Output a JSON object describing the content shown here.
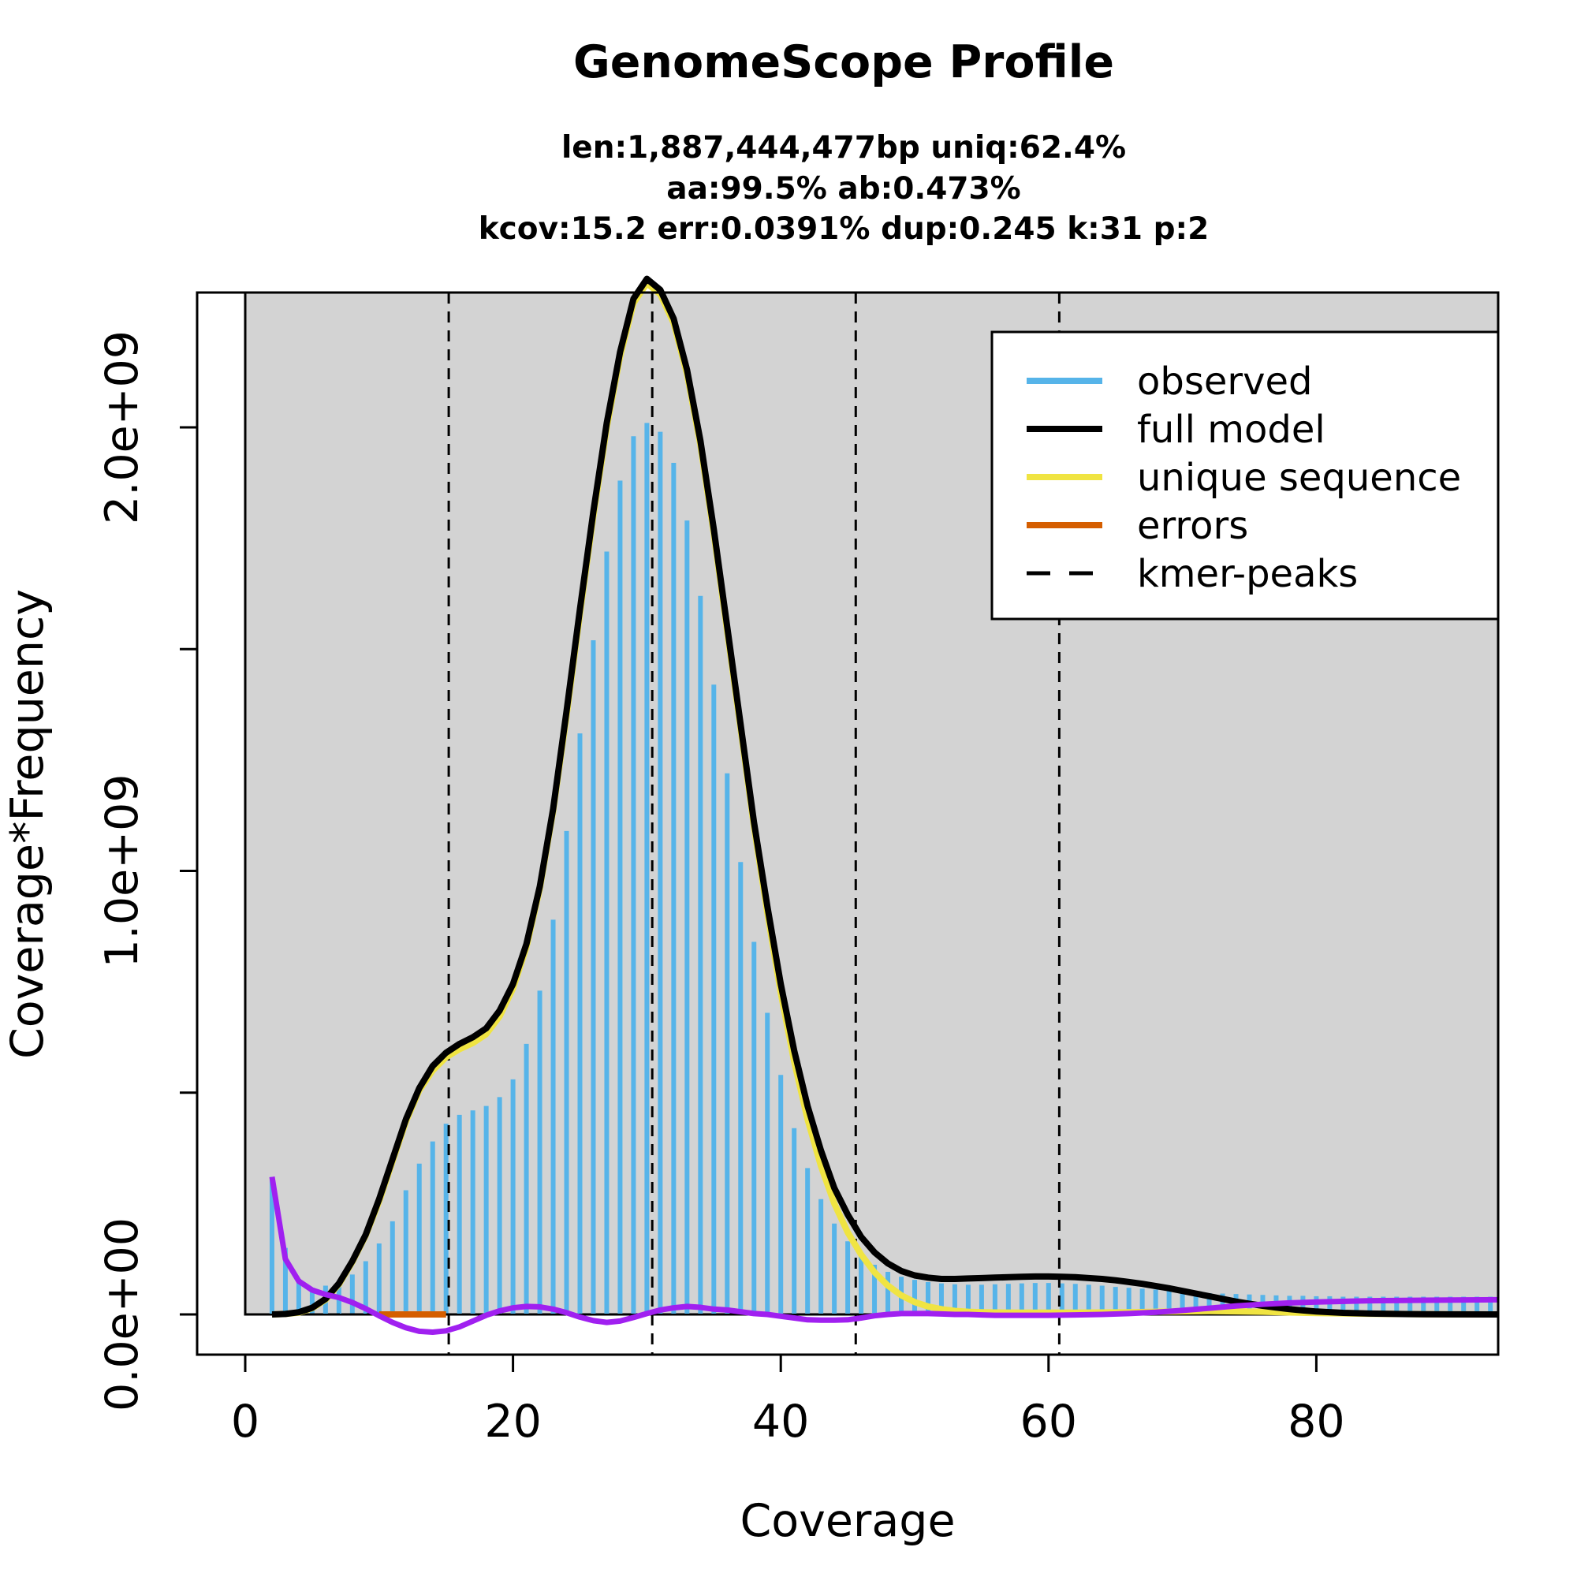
{
  "chart_data": {
    "type": "histogram+line",
    "title": "GenomeScope Profile",
    "subtitle_lines": [
      "len:1,887,444,477bp uniq:62.4%",
      "aa:99.5% ab:0.473%",
      "kcov:15.2 err:0.0391%  dup:0.245  k:31 p:2"
    ],
    "xlabel": "Coverage",
    "ylabel": "Coverage*Frequency",
    "xlim": [
      0,
      93.5
    ],
    "ylim": [
      0,
      2350000000.0
    ],
    "x_ticks": [
      0,
      20,
      40,
      60,
      80
    ],
    "x_tick_labels": [
      "0",
      "20",
      "40",
      "60",
      "80"
    ],
    "y_ticks": [
      0,
      500000000,
      1000000000,
      1500000000,
      2000000000
    ],
    "y_tick_labels": [
      "0.0e+00",
      "",
      "1.0e+09",
      "",
      "2.0e+09"
    ],
    "background_from_x": 0,
    "background_color": "#d3d3d3",
    "kmer_peaks": [
      15.2,
      30.4,
      45.6,
      60.8
    ],
    "observed": {
      "name": "observed",
      "color": "#56b4e9",
      "x": [
        2,
        3,
        4,
        5,
        6,
        7,
        8,
        9,
        10,
        11,
        12,
        13,
        14,
        15,
        16,
        17,
        18,
        19,
        20,
        21,
        22,
        23,
        24,
        25,
        26,
        27,
        28,
        29,
        30,
        31,
        32,
        33,
        34,
        35,
        36,
        37,
        38,
        39,
        40,
        41,
        42,
        43,
        44,
        45,
        46,
        47,
        48,
        49,
        50,
        51,
        52,
        53,
        54,
        55,
        56,
        57,
        58,
        59,
        60,
        61,
        62,
        63,
        64,
        65,
        66,
        67,
        68,
        69,
        70,
        71,
        72,
        73,
        74,
        75,
        76,
        77,
        78,
        79,
        80,
        81,
        82,
        83,
        84,
        85,
        86,
        87,
        88,
        89,
        90,
        91,
        92,
        93
      ],
      "y": [
        310000000.0,
        150000000.0,
        80000000.0,
        60000000.0,
        65000000.0,
        70000000.0,
        90000000.0,
        120000000.0,
        160000000.0,
        210000000.0,
        280000000.0,
        340000000.0,
        390000000.0,
        430000000.0,
        450000000.0,
        460000000.0,
        470000000.0,
        490000000.0,
        530000000.0,
        610000000.0,
        730000000.0,
        890000000.0,
        1090000000.0,
        1310000000.0,
        1520000000.0,
        1720000000.0,
        1880000000.0,
        1980000000.0,
        2010000000.0,
        1990000000.0,
        1920000000.0,
        1790000000.0,
        1620000000.0,
        1420000000.0,
        1220000000.0,
        1020000000.0,
        840000000.0,
        680000000.0,
        540000000.0,
        420000000.0,
        330000000.0,
        260000000.0,
        205000000.0,
        165000000.0,
        135000000.0,
        112000000.0,
        96000000.0,
        85000000.0,
        78000000.0,
        73000000.0,
        70000000.0,
        68000000.0,
        67000000.0,
        67000000.0,
        68000000.0,
        69000000.0,
        70000000.0,
        71000000.0,
        71000000.0,
        70000000.0,
        69000000.0,
        67000000.0,
        65000000.0,
        62000000.0,
        60000000.0,
        58000000.0,
        56000000.0,
        54000000.0,
        52000000.0,
        50000000.0,
        48000000.0,
        47000000.0,
        46000000.0,
        45000000.0,
        44000000.0,
        43000000.0,
        42000000.0,
        42000000.0,
        41000000.0,
        41000000.0,
        40000000.0,
        40000000.0,
        40000000.0,
        40000000.0,
        40000000.0,
        40000000.0,
        40000000.0,
        40000000.0,
        40000000.0,
        40000000.0,
        40000000.0,
        40000000.0
      ]
    },
    "series": [
      {
        "name": "full model",
        "color": "#000000",
        "x": [
          2,
          3,
          4,
          5,
          6,
          7,
          8,
          9,
          10,
          11,
          12,
          13,
          14,
          15,
          16,
          17,
          18,
          19,
          20,
          21,
          22,
          23,
          24,
          25,
          26,
          27,
          28,
          29,
          30,
          31,
          32,
          33,
          34,
          35,
          36,
          37,
          38,
          39,
          40,
          41,
          42,
          43,
          44,
          45,
          46,
          47,
          48,
          49,
          50,
          51,
          52,
          53,
          54,
          55,
          56,
          57,
          58,
          59,
          60,
          61,
          62,
          63,
          64,
          65,
          66,
          67,
          68,
          69,
          70,
          71,
          72,
          73,
          74,
          75,
          76,
          77,
          78,
          79,
          80,
          82,
          84,
          86,
          88,
          90,
          93.5
        ],
        "y": [
          0,
          1000000.0,
          5000000.0,
          15000000.0,
          35000000.0,
          70000000.0,
          120000000.0,
          180000000.0,
          260000000.0,
          350000000.0,
          440000000.0,
          510000000.0,
          560000000.0,
          590000000.0,
          610000000.0,
          625000000.0,
          645000000.0,
          685000000.0,
          745000000.0,
          835000000.0,
          965000000.0,
          1140000000.0,
          1360000000.0,
          1590000000.0,
          1810000000.0,
          2010000000.0,
          2170000000.0,
          2290000000.0,
          2335000000.0,
          2310000000.0,
          2245000000.0,
          2130000000.0,
          1970000000.0,
          1770000000.0,
          1550000000.0,
          1330000000.0,
          1110000000.0,
          920000000.0,
          745000000.0,
          595000000.0,
          470000000.0,
          370000000.0,
          285000000.0,
          225000000.0,
          175000000.0,
          140000000.0,
          115000000.0,
          98000000.0,
          88000000.0,
          83000000.0,
          80000000.0,
          80000000.0,
          81000000.0,
          82000000.0,
          83000000.0,
          84000000.0,
          85000000.0,
          85500000.0,
          85500000.0,
          85000000.0,
          84000000.0,
          82000000.0,
          80000000.0,
          77000000.0,
          73000000.0,
          69000000.0,
          64000000.0,
          59000000.0,
          53000000.0,
          47000000.0,
          41000000.0,
          35000000.0,
          29000000.0,
          24000000.0,
          19500000.0,
          15500000.0,
          12000000.0,
          9000000.0,
          6500000.0,
          3500000.0,
          2000000.0,
          1000000.0,
          500000.0,
          200000.0,
          0
        ]
      },
      {
        "name": "unique sequence",
        "color": "#f0e442",
        "x": [
          2,
          3,
          4,
          5,
          6,
          7,
          8,
          9,
          10,
          11,
          12,
          13,
          14,
          15,
          16,
          17,
          18,
          19,
          20,
          21,
          22,
          23,
          24,
          25,
          26,
          27,
          28,
          29,
          30,
          31,
          32,
          33,
          34,
          35,
          36,
          37,
          38,
          39,
          40,
          41,
          42,
          43,
          44,
          45,
          46,
          47,
          48,
          49,
          50,
          51,
          52,
          53,
          54,
          55,
          56,
          58,
          60,
          62,
          64,
          66,
          68,
          70,
          72,
          74,
          76,
          78,
          80,
          84,
          88,
          93.5
        ],
        "y": [
          0,
          1000000.0,
          4000000.0,
          14000000.0,
          33000000.0,
          68000000.0,
          118000000.0,
          178000000.0,
          255000000.0,
          345000000.0,
          435000000.0,
          505000000.0,
          550000000.0,
          580000000.0,
          598000000.0,
          612000000.0,
          632000000.0,
          672000000.0,
          735000000.0,
          828000000.0,
          960000000.0,
          1135000000.0,
          1350000000.0,
          1580000000.0,
          1800000000.0,
          2000000000.0,
          2160000000.0,
          2280000000.0,
          2325000000.0,
          2300000000.0,
          2235000000.0,
          2120000000.0,
          1960000000.0,
          1760000000.0,
          1540000000.0,
          1320000000.0,
          1100000000.0,
          905000000.0,
          725000000.0,
          570000000.0,
          440000000.0,
          335000000.0,
          250000000.0,
          185000000.0,
          135000000.0,
          95000000.0,
          65000000.0,
          43000000.0,
          28000000.0,
          18000000.0,
          12000000.0,
          8000000.0,
          6000000.0,
          5000000.0,
          4500000.0,
          4000000.0,
          4000000.0,
          4000000.0,
          4500000.0,
          5000000.0,
          6000000.0,
          7000000.0,
          7500000.0,
          7000000.0,
          6000000.0,
          4500000.0,
          3000000.0,
          1500000.0,
          500000.0,
          0
        ]
      },
      {
        "name": "errors",
        "color": "#d55e00",
        "x": [
          10,
          11,
          12,
          13,
          14,
          15
        ],
        "y": [
          0,
          0,
          0,
          0,
          0,
          0
        ]
      },
      {
        "name": "",
        "color": "#a020f0",
        "x": [
          2,
          3,
          4,
          5,
          6,
          7,
          8,
          9,
          10,
          11,
          12,
          13,
          14,
          15,
          16,
          17,
          18,
          19,
          20,
          21,
          22,
          23,
          24,
          25,
          26,
          27,
          28,
          29,
          30,
          31,
          32,
          33,
          34,
          35,
          36,
          37,
          38,
          39,
          40,
          41,
          42,
          43,
          44,
          45,
          46,
          47,
          48,
          49,
          50,
          51,
          52,
          53,
          54,
          55,
          56,
          58,
          60,
          62,
          64,
          66,
          68,
          70,
          72,
          74,
          76,
          78,
          80,
          84,
          88,
          93.5
        ],
        "y": [
          310000000.0,
          125000000.0,
          75000000.0,
          55000000.0,
          45000000.0,
          38000000.0,
          27000000.0,
          13000000.0,
          -3000000.0,
          -18000000.0,
          -30000000.0,
          -38000000.0,
          -40000000.0,
          -37000000.0,
          -28000000.0,
          -15000000.0,
          -2000000.0,
          8000000.0,
          15000000.0,
          18000000.0,
          17000000.0,
          12000000.0,
          4000000.0,
          -6000000.0,
          -14000000.0,
          -18000000.0,
          -15000000.0,
          -7000000.0,
          2000000.0,
          10000000.0,
          15000000.0,
          18000000.0,
          16000000.0,
          12000000.0,
          10000000.0,
          6000000.0,
          2000000.0,
          0,
          -4000000.0,
          -8000000.0,
          -12000000.0,
          -13000000.0,
          -13000000.0,
          -12000000.0,
          -8000000.0,
          -3000000.0,
          0,
          2000000.0,
          2000000.0,
          2000000.0,
          1000000.0,
          0,
          0,
          -1000000.0,
          -2000000.0,
          -2000000.0,
          -2000000.0,
          -1000000.0,
          0,
          2000000.0,
          5000000.0,
          9000000.0,
          14000000.0,
          19000000.0,
          23000000.0,
          26000000.0,
          28000000.0,
          31000000.0,
          32000000.0,
          33000000.0
        ]
      }
    ],
    "baseline": {
      "x": [
        2,
        15.2
      ],
      "y": 0
    },
    "legend": {
      "position": "top-right",
      "items": [
        {
          "label": "observed",
          "color": "#56b4e9",
          "style": "solid"
        },
        {
          "label": "full model",
          "color": "#000000",
          "style": "solid"
        },
        {
          "label": "unique sequence",
          "color": "#f0e442",
          "style": "solid"
        },
        {
          "label": "errors",
          "color": "#d55e00",
          "style": "solid"
        },
        {
          "label": "kmer-peaks",
          "color": "#000000",
          "style": "dashed"
        }
      ]
    }
  }
}
